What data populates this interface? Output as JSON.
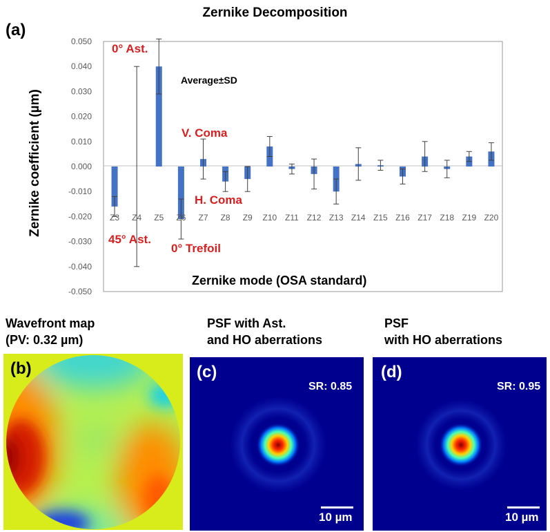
{
  "chart_data": {
    "type": "bar",
    "title": "Zernike Decomposition",
    "panel_label": "(a)",
    "xlabel": "Zernike mode (OSA standard)",
    "ylabel": "Zernike coefficient (µm)",
    "ylim": [
      -0.05,
      0.05
    ],
    "yticks": [
      "0.050",
      "0.040",
      "0.030",
      "0.020",
      "0.010",
      "0.000",
      "-0.010",
      "-0.020",
      "-0.030",
      "-0.040",
      "-0.050"
    ],
    "grid": false,
    "legend_text": "Average±SD",
    "bar_color": "#4472c4",
    "categories": [
      "Z3",
      "Z4",
      "Z5",
      "Z6",
      "Z7",
      "Z8",
      "Z9",
      "Z10",
      "Z11",
      "Z12",
      "Z13",
      "Z14",
      "Z15",
      "Z16",
      "Z17",
      "Z18",
      "Z19",
      "Z20"
    ],
    "values": [
      -0.016,
      0.0,
      0.04,
      -0.021,
      0.003,
      -0.006,
      -0.005,
      0.008,
      -0.001,
      -0.003,
      -0.01,
      0.001,
      0.0005,
      -0.004,
      0.004,
      -0.001,
      0.004,
      0.006
    ],
    "sd": [
      0.004,
      0.04,
      0.011,
      0.008,
      0.008,
      0.004,
      0.005,
      0.004,
      0.002,
      0.006,
      0.005,
      0.0065,
      0.002,
      0.003,
      0.006,
      0.0035,
      0.002,
      0.0035
    ],
    "annotations": [
      "0° Ast.",
      "45° Ast.",
      "0° Trefoil",
      "V. Coma",
      "H. Coma"
    ]
  },
  "panels": {
    "b": {
      "label": "(b)",
      "title_line1": "Wavefront map",
      "title_line2": "(PV: 0.32 µm)"
    },
    "c": {
      "label": "(c)",
      "title_line1": "PSF with Ast.",
      "title_line2": "and HO aberrations",
      "sr": "SR: 0.85",
      "scale": "10 µm"
    },
    "d": {
      "label": "(d)",
      "title_line1": "PSF",
      "title_line2": "with HO aberrations",
      "sr": "SR: 0.95",
      "scale": "10 µm"
    }
  },
  "colors": {
    "annotation": "#d42020",
    "psf_background": "#00008f",
    "bar": "#4472c4"
  }
}
